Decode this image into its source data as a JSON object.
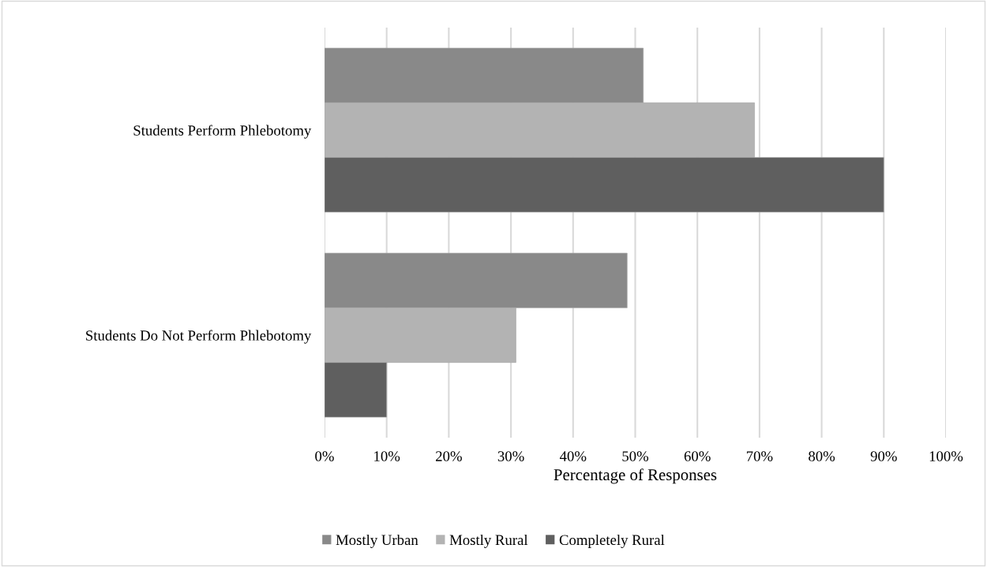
{
  "chart_data": {
    "type": "bar",
    "orientation": "horizontal",
    "xlabel": "Percentage of Responses",
    "categories": [
      "Students Perform Phlebotomy",
      "Students Do Not Perform Phlebotomy"
    ],
    "series": [
      {
        "name": "Mostly Urban",
        "color": "#898989",
        "values": [
          51.3,
          48.7
        ]
      },
      {
        "name": "Mostly Rural",
        "color": "#b3b3b3",
        "values": [
          69.2,
          30.8
        ]
      },
      {
        "name": "Completely Rural",
        "color": "#5f5f5f",
        "values": [
          90,
          10
        ]
      }
    ],
    "xlim": [
      0,
      100
    ],
    "xticks": [
      {
        "value": 0,
        "label": "0%"
      },
      {
        "value": 10,
        "label": "10%"
      },
      {
        "value": 20,
        "label": "20%"
      },
      {
        "value": 30,
        "label": "30%"
      },
      {
        "value": 40,
        "label": "40%"
      },
      {
        "value": 50,
        "label": "50%"
      },
      {
        "value": 60,
        "label": "60%"
      },
      {
        "value": 70,
        "label": "70%"
      },
      {
        "value": 80,
        "label": "80%"
      },
      {
        "value": 90,
        "label": "90%"
      },
      {
        "value": 100,
        "label": "100%"
      }
    ],
    "grid": "x",
    "legend": "bottom"
  }
}
